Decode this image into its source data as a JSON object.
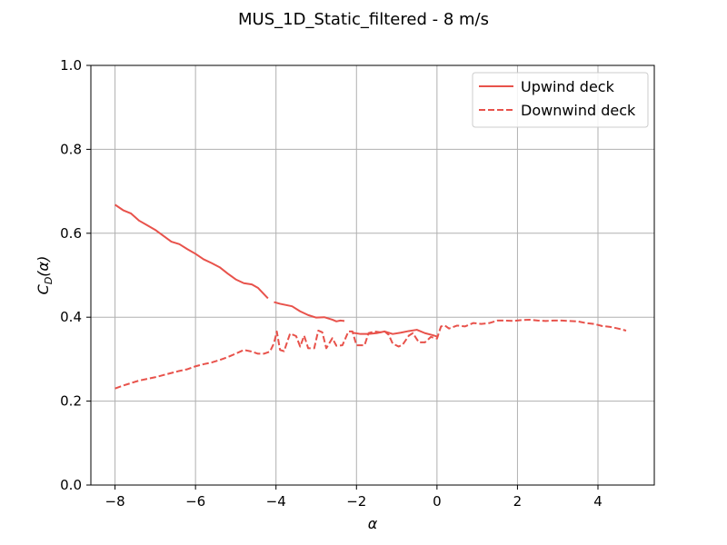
{
  "chart_data": {
    "type": "line",
    "title": "MUS_1D_Static_filtered - 8 m/s",
    "xlabel": "α",
    "ylabel_main": "C",
    "ylabel_sub": "D",
    "ylabel_suffix": "(α)",
    "xlim": [
      -8.6,
      5.4
    ],
    "ylim": [
      0.0,
      1.0
    ],
    "xticks": [
      -8,
      -6,
      -4,
      -2,
      0,
      2,
      4
    ],
    "xtick_labels": [
      "−8",
      "−6",
      "−4",
      "−2",
      "0",
      "2",
      "4"
    ],
    "yticks": [
      0.0,
      0.2,
      0.4,
      0.6,
      0.8,
      1.0
    ],
    "ytick_labels": [
      "0.0",
      "0.2",
      "0.4",
      "0.6",
      "0.8",
      "1.0"
    ],
    "grid": true,
    "legend_position": "top-right",
    "series": [
      {
        "name": "Upwind deck",
        "color": "#e8524b",
        "style": "solid",
        "segments": [
          [
            [
              -8.0,
              0.668
            ],
            [
              -7.8,
              0.655
            ],
            [
              -7.6,
              0.647
            ],
            [
              -7.4,
              0.63
            ],
            [
              -7.2,
              0.619
            ],
            [
              -7.0,
              0.608
            ],
            [
              -6.8,
              0.594
            ],
            [
              -6.6,
              0.58
            ],
            [
              -6.4,
              0.574
            ],
            [
              -6.2,
              0.562
            ],
            [
              -6.0,
              0.551
            ],
            [
              -5.8,
              0.538
            ],
            [
              -5.6,
              0.529
            ],
            [
              -5.4,
              0.519
            ],
            [
              -5.2,
              0.504
            ],
            [
              -5.0,
              0.49
            ],
            [
              -4.8,
              0.481
            ],
            [
              -4.6,
              0.478
            ],
            [
              -4.45,
              0.47
            ],
            [
              -4.3,
              0.455
            ],
            [
              -4.2,
              0.445
            ]
          ],
          [
            [
              -4.05,
              0.436
            ],
            [
              -3.9,
              0.432
            ],
            [
              -3.6,
              0.426
            ],
            [
              -3.4,
              0.414
            ],
            [
              -3.2,
              0.405
            ],
            [
              -3.0,
              0.399
            ],
            [
              -2.8,
              0.4
            ],
            [
              -2.6,
              0.394
            ],
            [
              -2.5,
              0.39
            ],
            [
              -2.4,
              0.392
            ],
            [
              -2.3,
              0.391
            ]
          ],
          [
            [
              -2.1,
              0.363
            ],
            [
              -1.9,
              0.36
            ],
            [
              -1.7,
              0.36
            ],
            [
              -1.5,
              0.362
            ],
            [
              -1.3,
              0.366
            ],
            [
              -1.1,
              0.36
            ],
            [
              -0.9,
              0.363
            ],
            [
              -0.7,
              0.367
            ],
            [
              -0.5,
              0.37
            ],
            [
              -0.3,
              0.362
            ],
            [
              -0.1,
              0.357
            ],
            [
              0.0,
              0.354
            ]
          ]
        ]
      },
      {
        "name": "Downwind deck",
        "color": "#e8524b",
        "style": "dashed",
        "segments": [
          [
            [
              -8.0,
              0.23
            ],
            [
              -7.8,
              0.237
            ],
            [
              -7.6,
              0.243
            ],
            [
              -7.4,
              0.249
            ],
            [
              -7.2,
              0.253
            ],
            [
              -7.0,
              0.257
            ],
            [
              -6.8,
              0.262
            ],
            [
              -6.6,
              0.267
            ],
            [
              -6.4,
              0.272
            ],
            [
              -6.2,
              0.276
            ],
            [
              -6.0,
              0.283
            ],
            [
              -5.8,
              0.288
            ],
            [
              -5.6,
              0.292
            ],
            [
              -5.4,
              0.298
            ],
            [
              -5.2,
              0.305
            ],
            [
              -5.0,
              0.313
            ],
            [
              -4.8,
              0.322
            ],
            [
              -4.6,
              0.318
            ],
            [
              -4.45,
              0.313
            ],
            [
              -4.3,
              0.313
            ],
            [
              -4.15,
              0.318
            ],
            [
              -4.05,
              0.338
            ],
            [
              -3.98,
              0.366
            ],
            [
              -3.9,
              0.322
            ],
            [
              -3.8,
              0.319
            ],
            [
              -3.65,
              0.361
            ],
            [
              -3.5,
              0.355
            ],
            [
              -3.4,
              0.33
            ],
            [
              -3.3,
              0.356
            ],
            [
              -3.2,
              0.326
            ],
            [
              -3.05,
              0.326
            ],
            [
              -2.95,
              0.368
            ],
            [
              -2.85,
              0.364
            ],
            [
              -2.75,
              0.326
            ],
            [
              -2.6,
              0.35
            ],
            [
              -2.5,
              0.332
            ],
            [
              -2.35,
              0.333
            ],
            [
              -2.2,
              0.366
            ],
            [
              -2.1,
              0.366
            ],
            [
              -2.0,
              0.333
            ],
            [
              -1.8,
              0.333
            ],
            [
              -1.7,
              0.362
            ],
            [
              -1.55,
              0.366
            ],
            [
              -1.4,
              0.364
            ],
            [
              -1.3,
              0.366
            ],
            [
              -1.2,
              0.358
            ],
            [
              -1.1,
              0.337
            ],
            [
              -0.95,
              0.33
            ],
            [
              -0.85,
              0.335
            ],
            [
              -0.7,
              0.356
            ],
            [
              -0.6,
              0.362
            ],
            [
              -0.45,
              0.34
            ],
            [
              -0.3,
              0.34
            ],
            [
              -0.15,
              0.353
            ],
            [
              0.0,
              0.349
            ],
            [
              0.1,
              0.378
            ],
            [
              0.2,
              0.38
            ],
            [
              0.3,
              0.373
            ],
            [
              0.5,
              0.38
            ],
            [
              0.7,
              0.378
            ],
            [
              0.9,
              0.386
            ],
            [
              1.1,
              0.384
            ],
            [
              1.3,
              0.386
            ],
            [
              1.5,
              0.392
            ],
            [
              1.7,
              0.392
            ],
            [
              1.9,
              0.391
            ],
            [
              2.1,
              0.393
            ],
            [
              2.3,
              0.394
            ],
            [
              2.5,
              0.392
            ],
            [
              2.7,
              0.391
            ],
            [
              2.9,
              0.392
            ],
            [
              3.1,
              0.392
            ],
            [
              3.3,
              0.391
            ],
            [
              3.5,
              0.39
            ],
            [
              3.7,
              0.386
            ],
            [
              3.9,
              0.384
            ],
            [
              4.1,
              0.379
            ],
            [
              4.3,
              0.377
            ],
            [
              4.5,
              0.373
            ],
            [
              4.7,
              0.368
            ]
          ]
        ]
      }
    ]
  }
}
